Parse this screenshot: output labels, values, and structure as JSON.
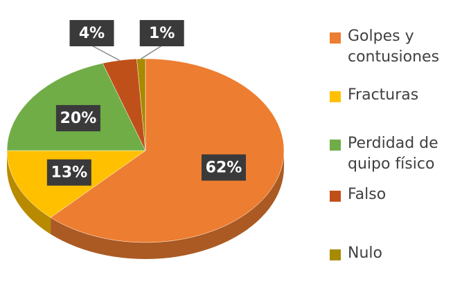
{
  "chart_data": {
    "type": "pie",
    "categories": [
      "Golpes y contusiones",
      "Fracturas",
      "Perdidad de quipo físico",
      "Falso",
      "Nulo"
    ],
    "values": [
      62,
      13,
      20,
      4,
      1
    ],
    "value_labels": [
      "62%",
      "13%",
      "20%",
      "4%",
      "1%"
    ],
    "colors": [
      "#ed7d31",
      "#ffc000",
      "#70ad47",
      "#c0501a",
      "#a88a00"
    ],
    "legend": "right"
  }
}
